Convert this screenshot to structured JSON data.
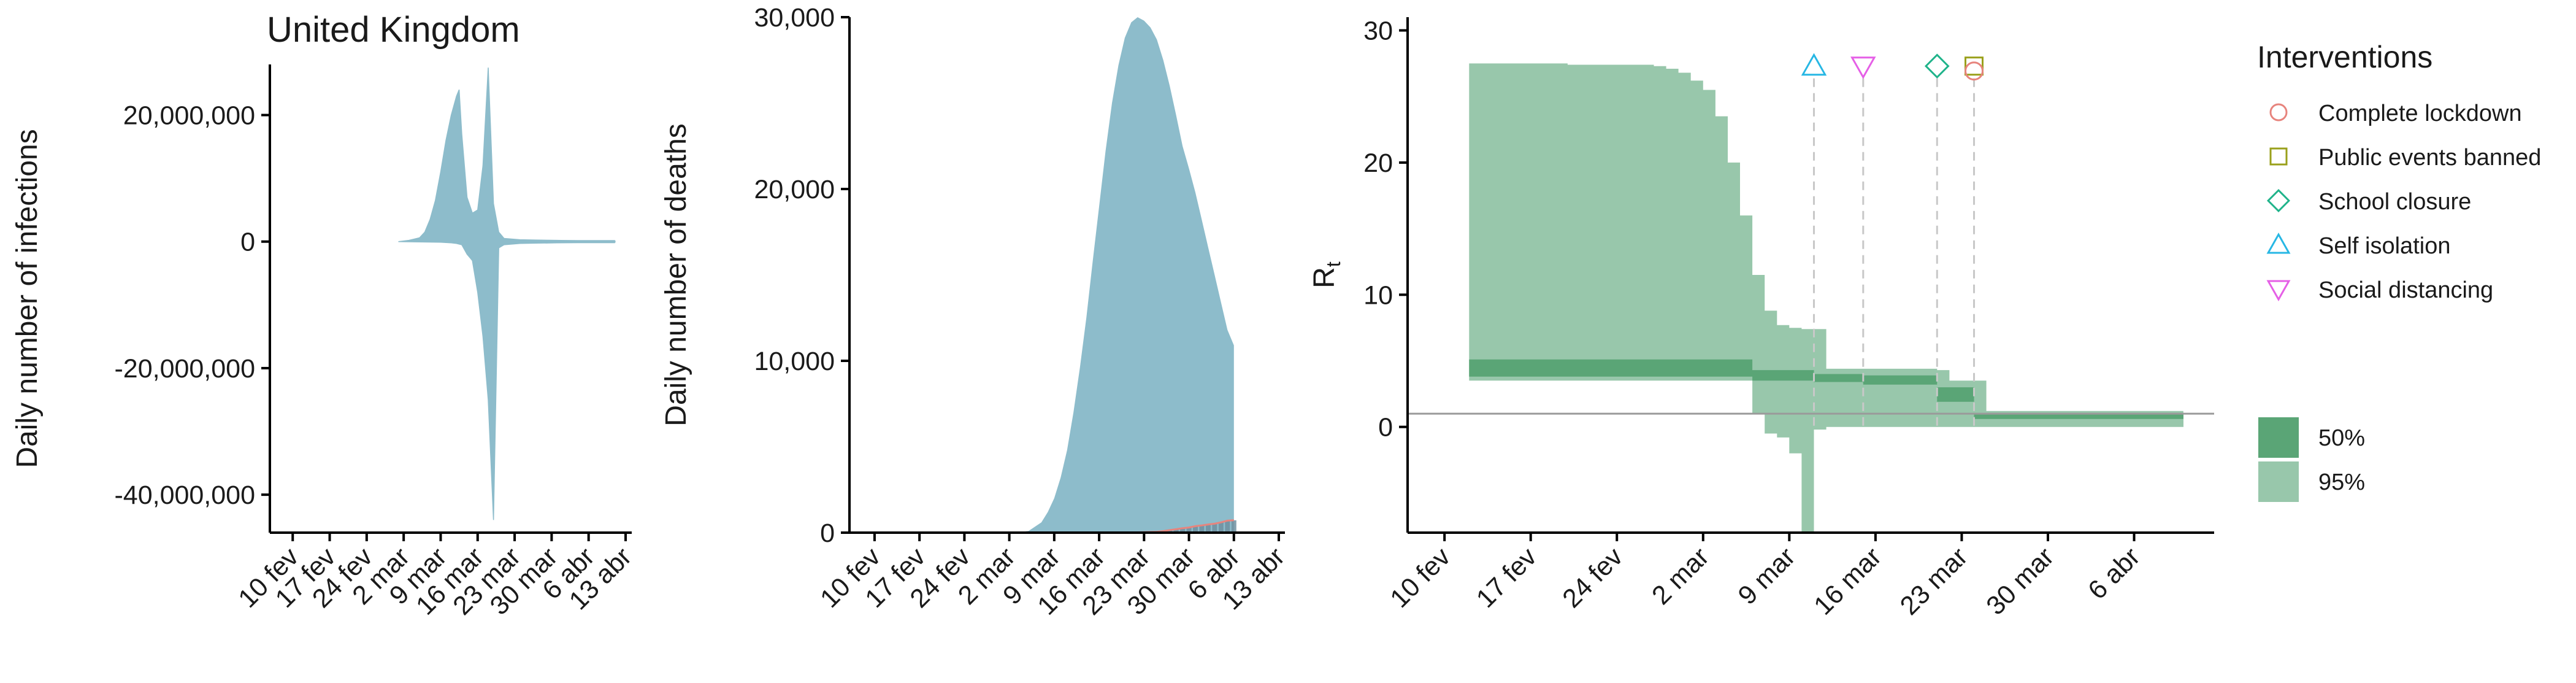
{
  "figure": {
    "title": "United Kingdom",
    "colors": {
      "area": "#8dbccb",
      "band95": "#98c7ab",
      "band50": "#5aa576",
      "observed": "#e7847d",
      "axis": "#000000",
      "reference": "#9a9a9a",
      "dashed": "#c8c8c8"
    }
  },
  "chart_data": [
    {
      "type": "area",
      "xlabel": "",
      "ylabel": "Daily number of infections",
      "x_ticks": [
        "10 fev",
        "17 fev",
        "24 fev",
        "2 mar",
        "9 mar",
        "16 mar",
        "23 mar",
        "30 mar",
        "6 abr",
        "13 abr"
      ],
      "y_ticks": [
        20000000,
        0,
        -20000000,
        -40000000
      ],
      "y_tick_labels": [
        "20,000,000",
        "0",
        "-20,000,000",
        "-40,000,000"
      ],
      "ylim": [
        -46000000,
        28000000
      ],
      "xlim_days": [
        -2,
        63
      ],
      "series": [
        {
          "upper": [
            [
              20,
              0
            ],
            [
              22,
              200000
            ],
            [
              24,
              600000
            ],
            [
              25,
              1500000
            ],
            [
              26,
              3500000
            ],
            [
              27,
              6500000
            ],
            [
              28,
              11000000
            ],
            [
              29,
              16000000
            ],
            [
              30,
              20000000
            ],
            [
              31,
              23000000
            ],
            [
              31.5,
              24000000
            ],
            [
              32,
              17000000
            ],
            [
              33,
              7000000
            ],
            [
              34,
              4500000
            ],
            [
              35,
              5000000
            ],
            [
              36,
              12000000
            ],
            [
              37,
              27500000
            ],
            [
              38,
              6000000
            ],
            [
              39,
              1500000
            ],
            [
              40,
              500000
            ],
            [
              43,
              300000
            ],
            [
              46,
              250000
            ],
            [
              50,
              200000
            ],
            [
              54,
              150000
            ],
            [
              58,
              100000
            ],
            [
              61,
              80000
            ]
          ],
          "lower": [
            [
              61,
              -80000
            ],
            [
              58,
              -100000
            ],
            [
              54,
              -150000
            ],
            [
              50,
              -200000
            ],
            [
              46,
              -250000
            ],
            [
              43,
              -300000
            ],
            [
              40,
              -500000
            ],
            [
              39,
              -1000000
            ],
            [
              38,
              -44000000
            ],
            [
              37,
              -25000000
            ],
            [
              36,
              -15000000
            ],
            [
              35,
              -8000000
            ],
            [
              34,
              -3000000
            ],
            [
              33,
              -2000000
            ],
            [
              32,
              -500000
            ],
            [
              31,
              -300000
            ],
            [
              30,
              -200000
            ],
            [
              28,
              -100000
            ],
            [
              20,
              0
            ]
          ]
        }
      ]
    },
    {
      "type": "area",
      "xlabel": "",
      "ylabel": "Daily number of deaths",
      "x_ticks": [
        "10 fev",
        "17 fev",
        "24 fev",
        "2 mar",
        "9 mar",
        "16 mar",
        "23 mar",
        "30 mar",
        "6 abr",
        "13 abr"
      ],
      "y_ticks": [
        0,
        10000,
        20000,
        30000
      ],
      "y_tick_labels": [
        "0",
        "10,000",
        "20,000",
        "30,000"
      ],
      "ylim": [
        0,
        30000
      ],
      "xlim_days": [
        -2,
        63
      ],
      "series": [
        {
          "upper": [
            [
              20,
              0
            ],
            [
              22,
              0
            ],
            [
              24,
              100
            ],
            [
              26,
              600
            ],
            [
              27,
              1200
            ],
            [
              28,
              2000
            ],
            [
              29,
              3200
            ],
            [
              30,
              4800
            ],
            [
              31,
              7000
            ],
            [
              32,
              9600
            ],
            [
              33,
              12500
            ],
            [
              34,
              15800
            ],
            [
              35,
              19000
            ],
            [
              36,
              22200
            ],
            [
              37,
              25000
            ],
            [
              38,
              27200
            ],
            [
              39,
              28800
            ],
            [
              40,
              29700
            ],
            [
              41,
              30000
            ],
            [
              42,
              29800
            ],
            [
              43,
              29400
            ],
            [
              44,
              28700
            ],
            [
              45,
              27500
            ],
            [
              46,
              26000
            ],
            [
              47,
              24300
            ],
            [
              48,
              22500
            ],
            [
              49,
              21200
            ],
            [
              50,
              19800
            ],
            [
              51,
              18200
            ],
            [
              52,
              16600
            ],
            [
              53,
              15000
            ],
            [
              54,
              13400
            ],
            [
              55,
              11800
            ],
            [
              56,
              10900
            ],
            [
              56,
              0
            ]
          ],
          "lower": [
            [
              56,
              0
            ],
            [
              20,
              0
            ]
          ]
        }
      ],
      "observed_deaths": [
        [
          40,
          10
        ],
        [
          42,
          30
        ],
        [
          44,
          50
        ],
        [
          45,
          90
        ],
        [
          46,
          150
        ],
        [
          47,
          200
        ],
        [
          48,
          260
        ],
        [
          49,
          300
        ],
        [
          50,
          380
        ],
        [
          51,
          420
        ],
        [
          52,
          480
        ],
        [
          53,
          520
        ],
        [
          54,
          600
        ],
        [
          55,
          700
        ],
        [
          56,
          720
        ]
      ]
    },
    {
      "type": "area",
      "xlabel": "",
      "ylabel": "Rt",
      "ylabel_main": "R",
      "ylabel_sub": "t",
      "x_ticks": [
        "10 fev",
        "17 fev",
        "24 fev",
        "2 mar",
        "9 mar",
        "16 mar",
        "23 mar",
        "30 mar",
        "6 abr"
      ],
      "y_ticks": [
        0,
        10,
        20,
        30
      ],
      "y_tick_labels": [
        "0",
        "10",
        "20",
        "30"
      ],
      "ylim": [
        -8,
        31
      ],
      "xlim_days": [
        -2,
        62
      ],
      "reference_line": 1,
      "band95": [
        [
          2,
          27.5,
          3.5
        ],
        [
          10,
          27.4,
          3.5
        ],
        [
          17,
          27.3,
          3.5
        ],
        [
          18,
          27.1,
          3.5
        ],
        [
          19,
          26.8,
          3.5
        ],
        [
          20,
          26.2,
          3.5
        ],
        [
          21,
          25.5,
          3.5
        ],
        [
          22,
          23.5,
          3.5
        ],
        [
          23,
          20.0,
          3.5
        ],
        [
          24,
          16.0,
          3.5
        ],
        [
          25,
          11.5,
          1.0
        ],
        [
          26,
          8.8,
          -0.5
        ],
        [
          27,
          7.7,
          -0.8
        ],
        [
          28,
          7.5,
          -2.0
        ],
        [
          29,
          7.4,
          -8.0
        ],
        [
          30,
          7.4,
          -0.2
        ],
        [
          31,
          4.4,
          0.0
        ],
        [
          40,
          4.3,
          0.0
        ],
        [
          41,
          3.5,
          0.0
        ],
        [
          44,
          1.2,
          0.0
        ],
        [
          60,
          1.1,
          0.0
        ],
        [
          60.01,
          1.1,
          0.0
        ]
      ],
      "band50": [
        [
          2,
          5.1,
          3.8
        ],
        [
          25,
          5.1,
          3.8
        ],
        [
          25,
          4.3,
          3.5
        ],
        [
          30,
          4.2,
          3.6
        ],
        [
          30,
          4.0,
          3.4
        ],
        [
          34,
          4.0,
          3.4
        ],
        [
          34,
          3.9,
          3.2
        ],
        [
          40,
          3.8,
          3.0
        ],
        [
          40,
          3.0,
          1.9
        ],
        [
          43,
          3.0,
          1.9
        ],
        [
          43,
          1.0,
          0.6
        ],
        [
          60,
          1.0,
          0.6
        ],
        [
          60.01,
          1.0,
          0.6
        ]
      ],
      "interventions": [
        {
          "name": "Self isolation",
          "day": 30,
          "marker": "triangle-up",
          "color": "#27b7e4"
        },
        {
          "name": "Social distancing",
          "day": 34,
          "marker": "triangle-down",
          "color": "#e55fe6"
        },
        {
          "name": "School closure",
          "day": 40,
          "marker": "diamond",
          "color": "#1fb38a"
        },
        {
          "name": "Public events banned",
          "day": 43,
          "marker": "square",
          "color": "#9aa01b"
        },
        {
          "name": "Complete lockdown",
          "day": 43,
          "marker": "circle",
          "color": "#e7847d"
        }
      ],
      "legend": {
        "title": "Interventions",
        "entries": [
          {
            "label": "Complete lockdown",
            "marker": "circle",
            "color": "#e7847d"
          },
          {
            "label": "Public events banned",
            "marker": "square",
            "color": "#9aa01b"
          },
          {
            "label": "School closure",
            "marker": "diamond",
            "color": "#1fb38a"
          },
          {
            "label": "Self isolation",
            "marker": "triangle-up",
            "color": "#27b7e4"
          },
          {
            "label": "Social distancing",
            "marker": "triangle-down",
            "color": "#e55fe6"
          }
        ],
        "bands": [
          {
            "label": "50%",
            "color": "#5aa576"
          },
          {
            "label": "95%",
            "color": "#98c7ab"
          }
        ]
      }
    }
  ]
}
